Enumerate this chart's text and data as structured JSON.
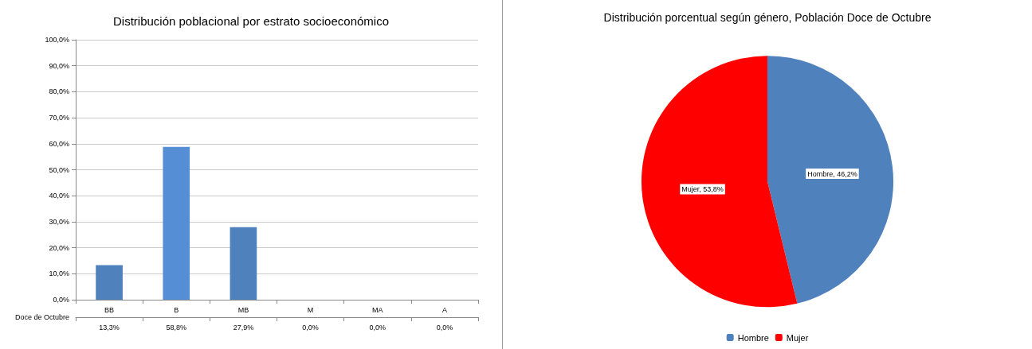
{
  "chart_data": [
    {
      "type": "bar",
      "title": "Distribución poblacional por estrato socioeconómico",
      "categories": [
        "BB",
        "B",
        "MB",
        "M",
        "MA",
        "A"
      ],
      "series": [
        {
          "name": "Doce de Octubre",
          "values": [
            13.3,
            58.8,
            27.9,
            0,
            0,
            0
          ],
          "colors": [
            "#4f81bd",
            "#558ed5",
            "#4f81bd",
            "#4f81bd",
            "#4f81bd",
            "#4f81bd"
          ],
          "value_labels": [
            "13,3%",
            "58,8%",
            "27,9%",
            "0,0%",
            "0,0%",
            "0,0%"
          ]
        }
      ],
      "ylim": [
        0,
        100
      ],
      "yticks": [
        {
          "value": 0,
          "label": "0,0%"
        },
        {
          "value": 10,
          "label": "10,0%"
        },
        {
          "value": 20,
          "label": "20,0%"
        },
        {
          "value": 30,
          "label": "30,0%"
        },
        {
          "value": 40,
          "label": "40,0%"
        },
        {
          "value": 50,
          "label": "50,0%"
        },
        {
          "value": 60,
          "label": "60,0%"
        },
        {
          "value": 70,
          "label": "70,0%"
        },
        {
          "value": 80,
          "label": "80,0%"
        },
        {
          "value": 90,
          "label": "90,0%"
        },
        {
          "value": 100,
          "label": "100,0%"
        }
      ],
      "grid": true,
      "legend": false
    },
    {
      "type": "pie",
      "title": "Distribución porcentual según género, Población Doce de Octubre",
      "categories": [
        "Hombre",
        "Mujer"
      ],
      "values": [
        46.2,
        53.8
      ],
      "colors": [
        "#4f81bd",
        "#ff0000"
      ],
      "value_labels": [
        "Hombre, 46,2%",
        "Mujer, 53,8%"
      ],
      "legend": "bottom"
    }
  ]
}
